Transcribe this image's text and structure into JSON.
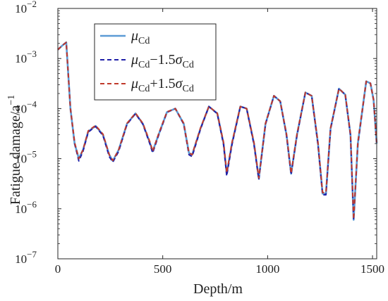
{
  "chart_data": {
    "type": "line",
    "xlabel": "Depth/m",
    "ylabel": "Fatigue damage/a",
    "ylabel_sup": "−1",
    "xlim": [
      0,
      1520
    ],
    "ylim": [
      1e-07,
      0.01
    ],
    "y_scale": "log",
    "grid": false,
    "legend_position": "top-left",
    "x_ticks": [
      0,
      500,
      1000,
      1500
    ],
    "x_tick_labels": [
      "0",
      "500",
      "1000",
      "1500"
    ],
    "y_ticks": [
      1e-07,
      1e-06,
      1e-05,
      0.0001,
      0.001,
      0.01
    ],
    "y_tick_base": "10",
    "y_tick_exponents": [
      "−7",
      "−6",
      "−5",
      "−4",
      "−3",
      "−2"
    ],
    "x": [
      0,
      20,
      40,
      60,
      80,
      100,
      120,
      145,
      180,
      215,
      245,
      262,
      290,
      330,
      370,
      405,
      440,
      452,
      480,
      520,
      560,
      600,
      625,
      640,
      680,
      720,
      760,
      790,
      805,
      830,
      870,
      900,
      935,
      958,
      990,
      1030,
      1060,
      1090,
      1112,
      1140,
      1180,
      1210,
      1240,
      1262,
      1278,
      1300,
      1340,
      1370,
      1395,
      1410,
      1430,
      1470,
      1490,
      1505,
      1520
    ],
    "series": [
      {
        "name": "μCd",
        "color": "#5b9bd5",
        "style": "solid",
        "values": [
          0.0015,
          0.0018,
          0.0021,
          0.0001,
          2e-05,
          1e-05,
          1.5e-05,
          3.5e-05,
          4.5e-05,
          3e-05,
          1.2e-05,
          9e-06,
          1.5e-05,
          5e-05,
          8e-05,
          5e-05,
          2e-05,
          1.4e-05,
          3e-05,
          8.5e-05,
          0.0001,
          5e-05,
          1.3e-05,
          1.2e-05,
          4e-05,
          0.00011,
          8e-05,
          2e-05,
          5e-06,
          2e-05,
          0.00011,
          0.0001,
          2e-05,
          4e-06,
          5e-05,
          0.00018,
          0.00014,
          3e-05,
          5e-06,
          3e-05,
          0.00021,
          0.00018,
          2e-05,
          2e-06,
          2e-06,
          4e-05,
          0.00025,
          0.00019,
          3e-05,
          6e-07,
          2e-05,
          0.00035,
          0.00032,
          0.00015,
          2e-05
        ]
      },
      {
        "name": "μCd−1.5σCd",
        "color": "#1f1fa8",
        "style": "dashed",
        "values": [
          0.0015,
          0.0018,
          0.0021,
          0.0001,
          2e-05,
          9e-06,
          1.4e-05,
          3.4e-05,
          4.4e-05,
          2.9e-05,
          1.1e-05,
          8.5e-06,
          1.4e-05,
          4.9e-05,
          7.9e-05,
          4.9e-05,
          1.9e-05,
          1.3e-05,
          2.9e-05,
          8.4e-05,
          0.0001,
          4.9e-05,
          1.2e-05,
          1.1e-05,
          3.9e-05,
          0.00011,
          7.9e-05,
          1.9e-05,
          4.5e-06,
          1.9e-05,
          0.00011,
          0.0001,
          1.9e-05,
          3.8e-06,
          4.9e-05,
          0.00018,
          0.00014,
          2.9e-05,
          4.8e-06,
          2.9e-05,
          0.00021,
          0.00018,
          1.9e-05,
          1.9e-06,
          1.9e-06,
          3.9e-05,
          0.00025,
          0.00019,
          2.9e-05,
          6e-07,
          1.9e-05,
          0.00035,
          0.00032,
          0.00015,
          2e-05
        ]
      },
      {
        "name": "μCd+1.5σCd",
        "color": "#c0392b",
        "style": "dashed",
        "values": [
          0.0015,
          0.0018,
          0.0021,
          0.0001,
          2.1e-05,
          1e-05,
          1.5e-05,
          3.6e-05,
          4.6e-05,
          3.1e-05,
          1.2e-05,
          9.2e-06,
          1.5e-05,
          5.1e-05,
          8.1e-05,
          5.1e-05,
          2.1e-05,
          1.4e-05,
          3.1e-05,
          8.6e-05,
          0.0001,
          5.1e-05,
          1.3e-05,
          1.2e-05,
          4.1e-05,
          0.00011,
          8.1e-05,
          2.1e-05,
          5.2e-06,
          2.1e-05,
          0.00011,
          0.0001,
          2.1e-05,
          4.1e-06,
          5.1e-05,
          0.00018,
          0.00014,
          3.1e-05,
          5.1e-06,
          3.1e-05,
          0.00021,
          0.00018,
          2.1e-05,
          2.1e-06,
          2.1e-06,
          4.1e-05,
          0.00025,
          0.00019,
          3.1e-05,
          6.2e-07,
          2.1e-05,
          0.00035,
          0.00032,
          0.00015,
          2e-05
        ]
      }
    ],
    "legend": [
      {
        "sym": "μ",
        "sub": "Cd",
        "mid": "",
        "sym2": "",
        "sub2": ""
      },
      {
        "sym": "μ",
        "sub": "Cd",
        "mid": "−1.5",
        "sym2": "σ",
        "sub2": "Cd"
      },
      {
        "sym": "μ",
        "sub": "Cd",
        "mid": "+1.5",
        "sym2": "σ",
        "sub2": "Cd"
      }
    ]
  }
}
